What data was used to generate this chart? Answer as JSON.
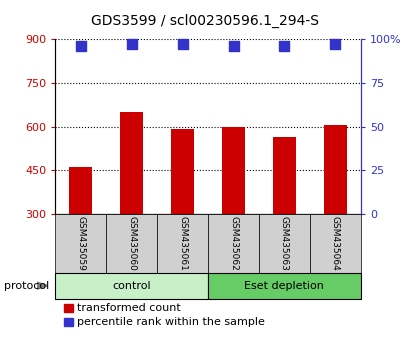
{
  "title": "GDS3599 / scl00230596.1_294-S",
  "samples": [
    "GSM435059",
    "GSM435060",
    "GSM435061",
    "GSM435062",
    "GSM435063",
    "GSM435064"
  ],
  "red_values": [
    460,
    650,
    590,
    600,
    565,
    605
  ],
  "blue_values": [
    96,
    97,
    97,
    96,
    96,
    97
  ],
  "ylim_left": [
    300,
    900
  ],
  "ylim_right": [
    0,
    100
  ],
  "yticks_left": [
    300,
    450,
    600,
    750,
    900
  ],
  "yticks_right": [
    0,
    25,
    50,
    75,
    100
  ],
  "ytick_labels_right": [
    "0",
    "25",
    "50",
    "75",
    "100%"
  ],
  "groups": [
    {
      "label": "control",
      "n": 3,
      "color": "#c8f0c8"
    },
    {
      "label": "Eset depletion",
      "n": 3,
      "color": "#66cc66"
    }
  ],
  "protocol_label": "protocol",
  "legend_red_label": "transformed count",
  "legend_blue_label": "percentile rank within the sample",
  "red_color": "#cc0000",
  "blue_color": "#3333cc",
  "bar_width": 0.45,
  "dot_size": 45,
  "grid_color": "#000000",
  "sample_box_color": "#d0d0d0",
  "title_fontsize": 10,
  "axis_fontsize": 8,
  "label_fontsize": 8,
  "tick_label_fontsize": 8
}
